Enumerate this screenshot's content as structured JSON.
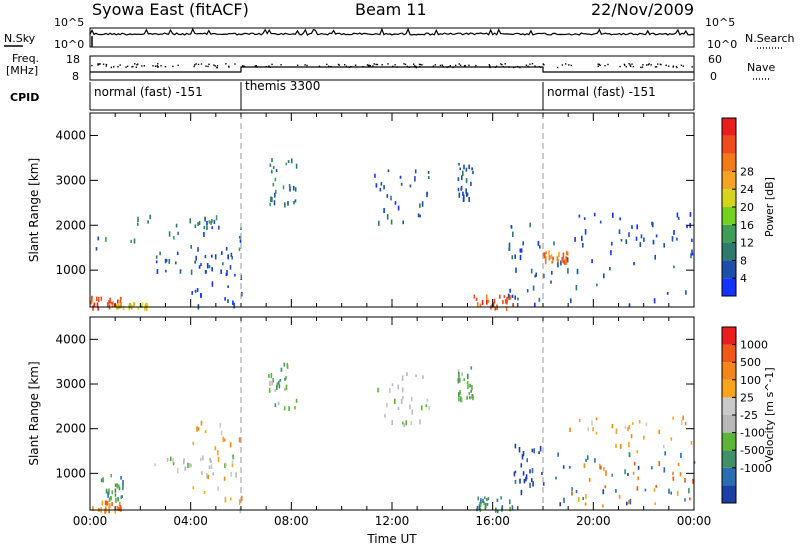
{
  "header": {
    "radar": "Syowa East (fitACF)",
    "beam": "Beam 11",
    "date": "22/Nov/2009"
  },
  "status_panels": {
    "nsky": {
      "label": "N.Sky",
      "ticks": [
        "10^5",
        "10^0"
      ]
    },
    "nsearch": {
      "label": "N.Search",
      "ticks": [
        "10^5",
        "10^0"
      ]
    },
    "freq": {
      "label_line1": "Freq.",
      "label_line2": "[MHz]",
      "ticks": [
        "18",
        "8"
      ]
    },
    "nave": {
      "label": "Nave",
      "ticks": [
        "60",
        "0"
      ]
    },
    "cpid": {
      "label": "CPID",
      "segments": [
        {
          "name": "normal (fast) -151",
          "start_hour": 0,
          "end_hour": 6
        },
        {
          "name": "themis 3300",
          "start_hour": 6,
          "end_hour": 18
        },
        {
          "name": "normal (fast) -151",
          "start_hour": 18,
          "end_hour": 24
        }
      ]
    }
  },
  "chart_data": [
    {
      "type": "heatmap",
      "panel": "power",
      "ylabel": "Slant Range [km]",
      "xlim": [
        0,
        24
      ],
      "ylim": [
        180,
        4500
      ],
      "y_ticks": [
        1000,
        2000,
        3000,
        4000
      ],
      "colorbar": {
        "label": "Power [dB]",
        "ticks": [
          "4",
          "8",
          "12",
          "16",
          "20",
          "24",
          "28"
        ],
        "colors": [
          "#1433ff",
          "#1e4fa8",
          "#2e7a6e",
          "#3f9d55",
          "#74d21f",
          "#d4d51b",
          "#f5a422",
          "#f27a17",
          "#ef4a1a",
          "#ea1c1c"
        ]
      },
      "regions": [
        {
          "x": [
            0.0,
            1.3
          ],
          "y": [
            180,
            450
          ],
          "level": 8
        },
        {
          "x": [
            1.0,
            2.3
          ],
          "y": [
            180,
            300
          ],
          "level": 5
        },
        {
          "x": [
            2.5,
            5.8
          ],
          "y": [
            1000,
            1450
          ],
          "level": 1
        },
        {
          "x": [
            4.0,
            6.0
          ],
          "y": [
            180,
            2200
          ],
          "level": 0
        },
        {
          "x": [
            0.2,
            6.0
          ],
          "y": [
            1500,
            2300
          ],
          "level": 2
        },
        {
          "x": [
            7.0,
            8.2
          ],
          "y": [
            2500,
            3500
          ],
          "level": 2
        },
        {
          "x": [
            11.2,
            13.5
          ],
          "y": [
            2100,
            3300
          ],
          "level": 1
        },
        {
          "x": [
            14.6,
            15.2
          ],
          "y": [
            2600,
            3400
          ],
          "level": 1
        },
        {
          "x": [
            15.2,
            16.8
          ],
          "y": [
            180,
            500
          ],
          "level": 8
        },
        {
          "x": [
            16.6,
            18.0
          ],
          "y": [
            200,
            2300
          ],
          "level": 1
        },
        {
          "x": [
            18.0,
            24.0
          ],
          "y": [
            250,
            1700
          ],
          "level": 1
        },
        {
          "x": [
            18.0,
            19.0
          ],
          "y": [
            1200,
            1450
          ],
          "level": 7
        },
        {
          "x": [
            18.8,
            24.0
          ],
          "y": [
            1700,
            2300
          ],
          "level": 0
        }
      ]
    },
    {
      "type": "heatmap",
      "panel": "velocity",
      "xlabel": "Time UT",
      "ylabel": "Slant Range [km]",
      "xlim": [
        0,
        24
      ],
      "ylim": [
        180,
        4500
      ],
      "x_tick_labels": [
        "00:00",
        "04:00",
        "08:00",
        "12:00",
        "16:00",
        "20:00",
        "00:00"
      ],
      "x_ticks": [
        0,
        4,
        8,
        12,
        16,
        20,
        24
      ],
      "y_ticks": [
        1000,
        2000,
        3000,
        4000
      ],
      "colorbar": {
        "label": "Velocity [m s^-1]",
        "ticks": [
          "1000",
          "500",
          "100",
          "25",
          "-25",
          "-100",
          "-500",
          "-1000"
        ],
        "colors": [
          "#1c3fa5",
          "#2b6db1",
          "#3f9068",
          "#5bb539",
          "#b9b9b9",
          "#c9c9c9",
          "#f7a51c",
          "#f48518",
          "#f05718",
          "#ea1c1c"
        ]
      },
      "regions": [
        {
          "x": [
            0.0,
            1.2
          ],
          "y": [
            180,
            400
          ],
          "level": 7
        },
        {
          "x": [
            0.4,
            1.3
          ],
          "y": [
            400,
            1000
          ],
          "level": 2
        },
        {
          "x": [
            2.5,
            5.8
          ],
          "y": [
            1000,
            1450
          ],
          "level": 4
        },
        {
          "x": [
            4.0,
            6.0
          ],
          "y": [
            200,
            2200
          ],
          "level": 6
        },
        {
          "x": [
            7.0,
            8.2
          ],
          "y": [
            2500,
            3500
          ],
          "level": 3
        },
        {
          "x": [
            11.2,
            13.5
          ],
          "y": [
            2100,
            3300
          ],
          "level": 4
        },
        {
          "x": [
            14.6,
            15.2
          ],
          "y": [
            2600,
            3400
          ],
          "level": 3
        },
        {
          "x": [
            15.2,
            16.8
          ],
          "y": [
            180,
            500
          ],
          "level": 2
        },
        {
          "x": [
            16.6,
            18.0
          ],
          "y": [
            600,
            1700
          ],
          "level": 0
        },
        {
          "x": [
            18.0,
            24.0
          ],
          "y": [
            300,
            1500
          ],
          "level": 1
        },
        {
          "x": [
            19.0,
            24.0
          ],
          "y": [
            300,
            1300
          ],
          "level": 7
        },
        {
          "x": [
            18.8,
            24.0
          ],
          "y": [
            1500,
            2300
          ],
          "level": 6
        }
      ]
    }
  ]
}
